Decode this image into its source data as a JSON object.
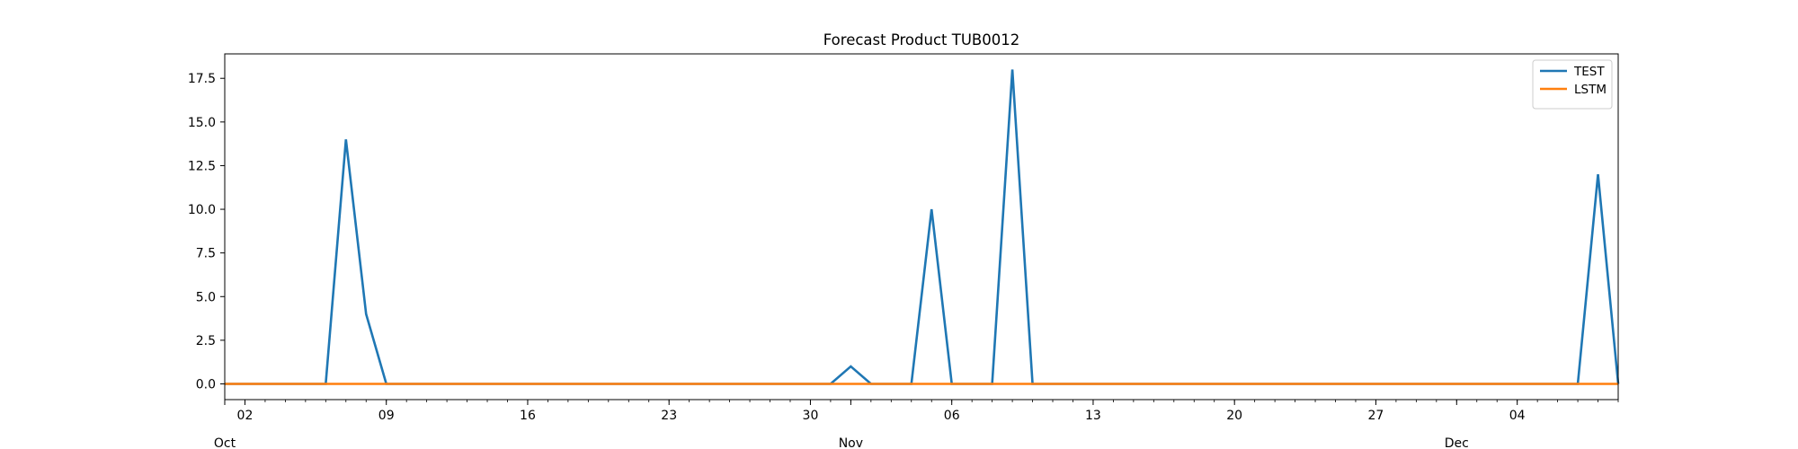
{
  "chart_data": {
    "type": "line",
    "title": "Forecast Product TUB0012",
    "xlabel": "",
    "ylabel": "",
    "x_start": "2023-10-01",
    "x_end": "2023-12-09",
    "ylim": [
      -0.9,
      18.9
    ],
    "y_ticks": [
      "0.0",
      "2.5",
      "5.0",
      "7.5",
      "10.0",
      "12.5",
      "15.0",
      "17.5"
    ],
    "x_major_ticks": [
      {
        "date": "2023-10-02",
        "label": "02"
      },
      {
        "date": "2023-10-09",
        "label": "09"
      },
      {
        "date": "2023-10-16",
        "label": "16"
      },
      {
        "date": "2023-10-23",
        "label": "23"
      },
      {
        "date": "2023-10-30",
        "label": "30"
      },
      {
        "date": "2023-11-06",
        "label": "06"
      },
      {
        "date": "2023-11-13",
        "label": "13"
      },
      {
        "date": "2023-11-20",
        "label": "20"
      },
      {
        "date": "2023-11-27",
        "label": "27"
      },
      {
        "date": "2023-12-04",
        "label": "04"
      }
    ],
    "x_month_labels": [
      {
        "date": "2023-10-01",
        "label": "Oct"
      },
      {
        "date": "2023-11-01",
        "label": "Nov"
      },
      {
        "date": "2023-12-01",
        "label": "Dec"
      }
    ],
    "legend_position": "top-right",
    "grid": false,
    "series": [
      {
        "name": "TEST",
        "color": "#1f77b4",
        "points": [
          [
            "2023-10-01",
            0
          ],
          [
            "2023-10-06",
            0
          ],
          [
            "2023-10-07",
            14
          ],
          [
            "2023-10-08",
            4
          ],
          [
            "2023-10-09",
            0
          ],
          [
            "2023-10-31",
            0
          ],
          [
            "2023-11-01",
            1
          ],
          [
            "2023-11-02",
            0
          ],
          [
            "2023-11-04",
            0
          ],
          [
            "2023-11-05",
            10
          ],
          [
            "2023-11-06",
            0
          ],
          [
            "2023-11-08",
            0
          ],
          [
            "2023-11-09",
            18
          ],
          [
            "2023-11-10",
            0
          ],
          [
            "2023-12-07",
            0
          ],
          [
            "2023-12-08",
            12
          ],
          [
            "2023-12-09",
            0
          ]
        ]
      },
      {
        "name": "LSTM",
        "color": "#ff7f0e",
        "points": [
          [
            "2023-10-01",
            0
          ],
          [
            "2023-12-09",
            0
          ]
        ]
      }
    ]
  }
}
